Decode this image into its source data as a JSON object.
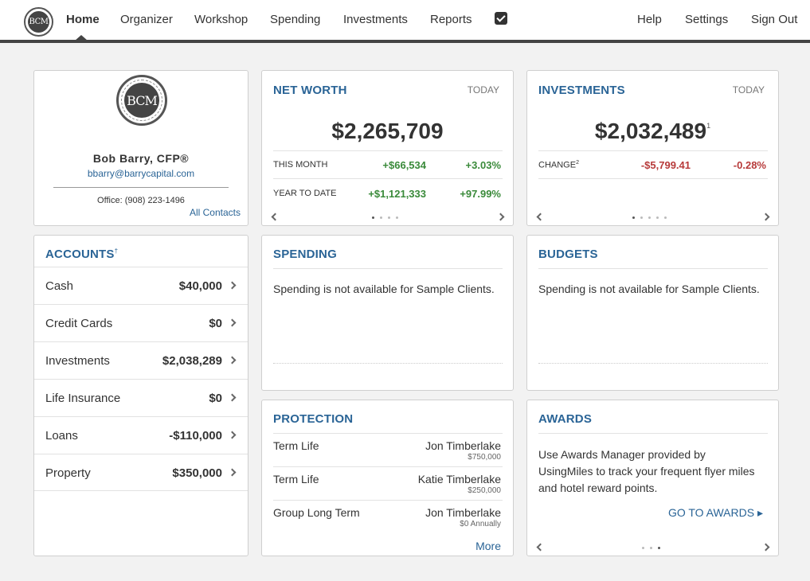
{
  "nav": {
    "logo_text": "BCM",
    "items": [
      "Home",
      "Organizer",
      "Workshop",
      "Spending",
      "Investments",
      "Reports"
    ],
    "right_items": [
      "Help",
      "Settings",
      "Sign Out"
    ]
  },
  "profile": {
    "logo_text": "BCM",
    "name": "Bob Barry, CFP®",
    "email": "bbarry@barrycapital.com",
    "office_label": "Office:",
    "office_phone": "(908) 223-1496",
    "contacts_link": "All Contacts"
  },
  "net_worth": {
    "title": "NET WORTH",
    "when": "TODAY",
    "value": "$2,265,709",
    "rows": [
      {
        "label": "THIS MONTH",
        "amount": "+$66,534",
        "percent": "+3.03%"
      },
      {
        "label": "YEAR TO DATE",
        "amount": "+$1,121,333",
        "percent": "+97.99%"
      }
    ]
  },
  "investments": {
    "title": "INVESTMENTS",
    "when": "TODAY",
    "value": "$2,032,489",
    "value_footnote": "1",
    "change_label": "CHANGE",
    "change_footnote": "2",
    "change_amount": "-$5,799.41",
    "change_percent": "-0.28%"
  },
  "accounts": {
    "title": "ACCOUNTS",
    "footnote": "†",
    "rows": [
      {
        "label": "Cash",
        "amount": "$40,000"
      },
      {
        "label": "Credit Cards",
        "amount": "$0"
      },
      {
        "label": "Investments",
        "amount": "$2,038,289"
      },
      {
        "label": "Life Insurance",
        "amount": "$0"
      },
      {
        "label": "Loans",
        "amount": "-$110,000"
      },
      {
        "label": "Property",
        "amount": "$350,000"
      }
    ]
  },
  "spending": {
    "title": "SPENDING",
    "message": "Spending is not available for Sample Clients."
  },
  "budgets": {
    "title": "BUDGETS",
    "message": "Spending is not available for Sample Clients."
  },
  "protection": {
    "title": "PROTECTION",
    "rows": [
      {
        "type": "Term Life",
        "name": "Jon Timberlake",
        "amount": "$750,000"
      },
      {
        "type": "Term Life",
        "name": "Katie Timberlake",
        "amount": "$250,000"
      },
      {
        "type": "Group Long Term",
        "name": "Jon Timberlake",
        "amount": "$0 Annually"
      }
    ],
    "more_link": "More"
  },
  "awards": {
    "title": "AWARDS",
    "line1": "Use Awards Manager provided by",
    "line2": "UsingMiles to track your frequent flyer miles",
    "line3": "and hotel reward points.",
    "link": "GO TO AWARDS ▸"
  }
}
